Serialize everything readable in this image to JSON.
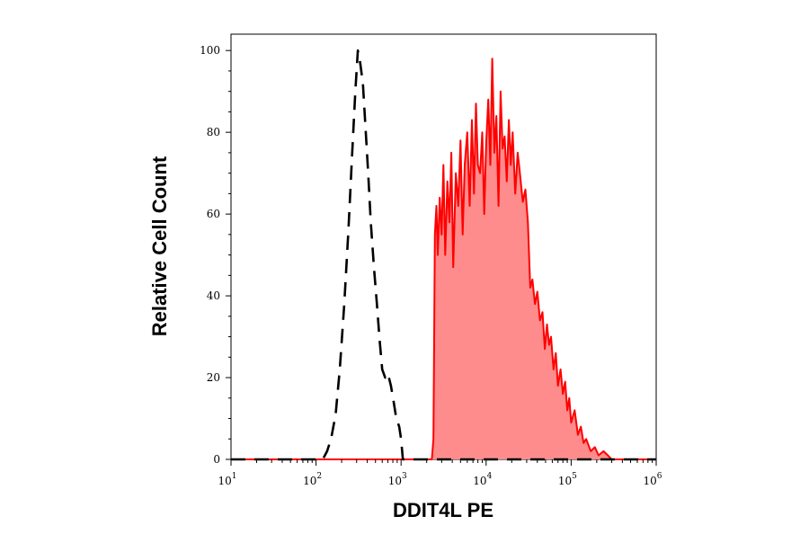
{
  "chart_data": {
    "type": "area",
    "title": "",
    "xlabel": "DDIT4L PE",
    "ylabel": "Relative Cell Count",
    "x_scale": "log",
    "xlim": [
      10,
      1000000
    ],
    "ylim": [
      0,
      104
    ],
    "grid": false,
    "legend": "none",
    "x_ticks": [
      {
        "base": "10",
        "exp": "1"
      },
      {
        "base": "10",
        "exp": "2"
      },
      {
        "base": "10",
        "exp": "3"
      },
      {
        "base": "10",
        "exp": "4"
      },
      {
        "base": "10",
        "exp": "5"
      },
      {
        "base": "10",
        "exp": "6"
      }
    ],
    "y_ticks": [
      "0",
      "20",
      "40",
      "60",
      "80",
      "100"
    ],
    "series": [
      {
        "style": "dashed",
        "color": "#000000",
        "fill": "none",
        "x": [
          10,
          120,
          135,
          150,
          170,
          190,
          215,
          240,
          265,
          290,
          310,
          330,
          355,
          380,
          410,
          440,
          480,
          520,
          560,
          600,
          650,
          700,
          760,
          820,
          880,
          950,
          1000,
          1050,
          2000,
          1000000
        ],
        "y": [
          0,
          0,
          2,
          5,
          11,
          22,
          38,
          56,
          74,
          90,
          100,
          97,
          92,
          82,
          70,
          58,
          47,
          38,
          29,
          22,
          20,
          21,
          18,
          14,
          10,
          8,
          5,
          0,
          0,
          0
        ]
      },
      {
        "style": "solid",
        "color": "#ff0000",
        "fill": "#ff8c8c",
        "x": [
          10,
          2000,
          2300,
          2400,
          2500,
          2600,
          2700,
          2850,
          3000,
          3150,
          3300,
          3500,
          3700,
          3900,
          4100,
          4400,
          4700,
          5000,
          5300,
          5600,
          6000,
          6400,
          6800,
          7200,
          7600,
          8000,
          8500,
          9000,
          9500,
          10000,
          10600,
          11200,
          11800,
          12500,
          13200,
          14000,
          14800,
          15600,
          16500,
          17500,
          18500,
          19500,
          20500,
          22000,
          23500,
          25000,
          27000,
          29000,
          31000,
          33000,
          35000,
          37500,
          40000,
          43000,
          46000,
          49000,
          52000,
          55000,
          58000,
          62000,
          66000,
          70000,
          75000,
          80000,
          85000,
          90000,
          95000,
          100000,
          110000,
          120000,
          130000,
          140000,
          150000,
          170000,
          190000,
          210000,
          240000,
          270000,
          300000,
          400000,
          1000000
        ],
        "y": [
          0,
          0,
          0,
          5,
          55,
          62,
          50,
          64,
          55,
          72,
          50,
          68,
          58,
          75,
          47,
          70,
          62,
          78,
          55,
          72,
          80,
          62,
          83,
          65,
          87,
          72,
          70,
          80,
          60,
          77,
          88,
          72,
          98,
          75,
          84,
          62,
          90,
          76,
          79,
          68,
          83,
          72,
          80,
          65,
          75,
          70,
          63,
          66,
          58,
          42,
          44,
          38,
          41,
          34,
          36,
          27,
          33,
          28,
          30,
          22,
          26,
          18,
          22,
          16,
          19,
          12,
          15,
          9,
          12,
          6,
          8,
          4,
          5,
          2,
          3,
          1,
          2,
          1,
          0,
          0,
          0
        ]
      }
    ]
  }
}
